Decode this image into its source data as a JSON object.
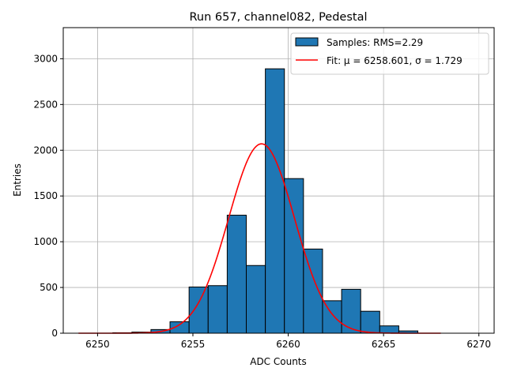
{
  "chart_data": {
    "type": "bar",
    "title": "Run 657, channel082, Pedestal",
    "xlabel": "ADC Counts",
    "ylabel": "Entries",
    "xlim": [
      6248.2,
      6270.8
    ],
    "ylim": [
      0,
      3340
    ],
    "xticks": [
      6250,
      6255,
      6260,
      6265,
      6270
    ],
    "xtick_labels": [
      "6250",
      "6255",
      "6260",
      "6265",
      "6270"
    ],
    "yticks": [
      0,
      500,
      1000,
      1500,
      2000,
      2500,
      3000
    ],
    "ytick_labels": [
      "0",
      "500",
      "1000",
      "1500",
      "2000",
      "2500",
      "3000"
    ],
    "grid": true,
    "legend_position": "top-right",
    "bins": [
      {
        "left": 6250.8,
        "right": 6251.8,
        "value": 5
      },
      {
        "left": 6251.8,
        "right": 6252.8,
        "value": 12
      },
      {
        "left": 6252.8,
        "right": 6253.8,
        "value": 40
      },
      {
        "left": 6253.8,
        "right": 6254.8,
        "value": 125
      },
      {
        "left": 6254.8,
        "right": 6255.8,
        "value": 505
      },
      {
        "left": 6255.8,
        "right": 6256.8,
        "value": 520
      },
      {
        "left": 6256.8,
        "right": 6257.8,
        "value": 1290
      },
      {
        "left": 6257.8,
        "right": 6258.8,
        "value": 740
      },
      {
        "left": 6258.8,
        "right": 6259.8,
        "value": 2890
      },
      {
        "left": 6259.8,
        "right": 6260.8,
        "value": 1690
      },
      {
        "left": 6260.8,
        "right": 6261.8,
        "value": 920
      },
      {
        "left": 6261.8,
        "right": 6262.8,
        "value": 355
      },
      {
        "left": 6262.8,
        "right": 6263.8,
        "value": 480
      },
      {
        "left": 6263.8,
        "right": 6264.8,
        "value": 240
      },
      {
        "left": 6264.8,
        "right": 6265.8,
        "value": 80
      },
      {
        "left": 6265.8,
        "right": 6266.8,
        "value": 25
      }
    ],
    "fit": {
      "mu": 6258.601,
      "sigma": 1.729,
      "amplitude": 2070,
      "x_range": [
        6249,
        6268
      ]
    },
    "legend": [
      {
        "label": "Samples: RMS=2.29",
        "kind": "patch"
      },
      {
        "label": "Fit: μ = 6258.601, σ = 1.729",
        "kind": "line"
      }
    ]
  },
  "colors": {
    "bar_fill": "#1f77b4",
    "bar_edge": "#000000",
    "fit_line": "#ff0000",
    "grid": "#b0b0b0"
  }
}
